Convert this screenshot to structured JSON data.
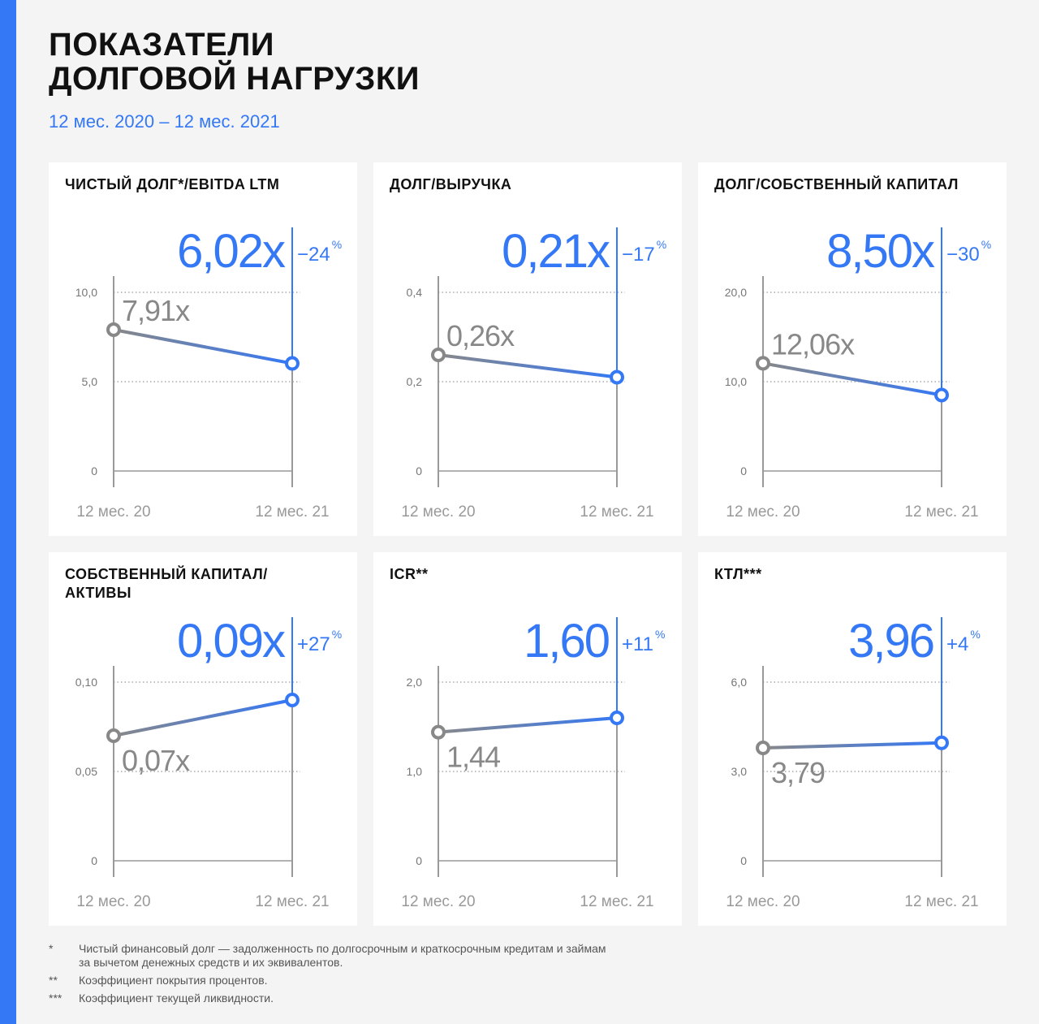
{
  "header": {
    "title_line1": "ПОКАЗАТЕЛИ",
    "title_line2": "ДОЛГОВОЙ НАГРУЗКИ",
    "subtitle": "12 мес. 2020 – 12 мес. 2021"
  },
  "colors": {
    "accent": "#3478f6",
    "gray": "#888888",
    "text": "#111111"
  },
  "chart_data": [
    {
      "type": "line",
      "title_lines": [
        "ЧИСТЫЙ ДОЛГ*/EBITDA LTM"
      ],
      "categories": [
        "12 мес. 20",
        "12 мес. 21"
      ],
      "values": [
        7.91,
        6.02
      ],
      "start_label": "7,91x",
      "end_label": "6,02x",
      "change": "−24",
      "change_unit": "%",
      "ylim": [
        0,
        10
      ],
      "yticks": [
        {
          "v": 0,
          "t": "0"
        },
        {
          "v": 5,
          "t": "5,0"
        },
        {
          "v": 10,
          "t": "10,0"
        }
      ],
      "start_label_pos": "above"
    },
    {
      "type": "line",
      "title_lines": [
        "ДОЛГ/ВЫРУЧКА"
      ],
      "categories": [
        "12 мес. 20",
        "12 мес. 21"
      ],
      "values": [
        0.26,
        0.21
      ],
      "start_label": "0,26x",
      "end_label": "0,21x",
      "change": "−17",
      "change_unit": "%",
      "ylim": [
        0,
        0.4
      ],
      "yticks": [
        {
          "v": 0,
          "t": "0"
        },
        {
          "v": 0.2,
          "t": "0,2"
        },
        {
          "v": 0.4,
          "t": "0,4"
        }
      ],
      "start_label_pos": "above"
    },
    {
      "type": "line",
      "title_lines": [
        "ДОЛГ/СОБСТВЕННЫЙ КАПИТАЛ"
      ],
      "categories": [
        "12 мес. 20",
        "12 мес. 21"
      ],
      "values": [
        12.06,
        8.5
      ],
      "start_label": "12,06x",
      "end_label": "8,50x",
      "change": "−30",
      "change_unit": "%",
      "ylim": [
        0,
        20
      ],
      "yticks": [
        {
          "v": 0,
          "t": "0"
        },
        {
          "v": 10,
          "t": "10,0"
        },
        {
          "v": 20,
          "t": "20,0"
        }
      ],
      "start_label_pos": "above"
    },
    {
      "type": "line",
      "title_lines": [
        "СОБСТВЕННЫЙ КАПИТАЛ/",
        "АКТИВЫ"
      ],
      "categories": [
        "12 мес. 20",
        "12 мес. 21"
      ],
      "values": [
        0.07,
        0.09
      ],
      "start_label": "0,07x",
      "end_label": "0,09x",
      "change": "+27",
      "change_unit": "%",
      "ylim": [
        0,
        0.1
      ],
      "yticks": [
        {
          "v": 0,
          "t": "0"
        },
        {
          "v": 0.05,
          "t": "0,05"
        },
        {
          "v": 0.1,
          "t": "0,10"
        }
      ],
      "start_label_pos": "below"
    },
    {
      "type": "line",
      "title_lines": [
        "ICR**"
      ],
      "categories": [
        "12 мес. 20",
        "12 мес. 21"
      ],
      "values": [
        1.44,
        1.6
      ],
      "start_label": "1,44",
      "end_label": "1,60",
      "change": "+11",
      "change_unit": "%",
      "ylim": [
        0,
        2
      ],
      "yticks": [
        {
          "v": 0,
          "t": "0"
        },
        {
          "v": 1,
          "t": "1,0"
        },
        {
          "v": 2,
          "t": "2,0"
        }
      ],
      "start_label_pos": "below"
    },
    {
      "type": "line",
      "title_lines": [
        "КТЛ***"
      ],
      "categories": [
        "12 мес. 20",
        "12 мес. 21"
      ],
      "values": [
        3.79,
        3.96
      ],
      "start_label": "3,79",
      "end_label": "3,96",
      "change": "+4",
      "change_unit": "%",
      "ylim": [
        0,
        6
      ],
      "yticks": [
        {
          "v": 0,
          "t": "0"
        },
        {
          "v": 3,
          "t": "3,0"
        },
        {
          "v": 6,
          "t": "6,0"
        }
      ],
      "start_label_pos": "below"
    }
  ],
  "footnotes": [
    {
      "mark": "*",
      "lines": [
        "Чистый финансовый долг — задолженность по долгосрочным и краткосрочным кредитам и займам",
        "за вычетом денежных средств и их эквивалентов."
      ]
    },
    {
      "mark": "**",
      "lines": [
        "Коэффициент покрытия процентов."
      ]
    },
    {
      "mark": "***",
      "lines": [
        "Коэффициент текущей ликвидности."
      ]
    }
  ]
}
